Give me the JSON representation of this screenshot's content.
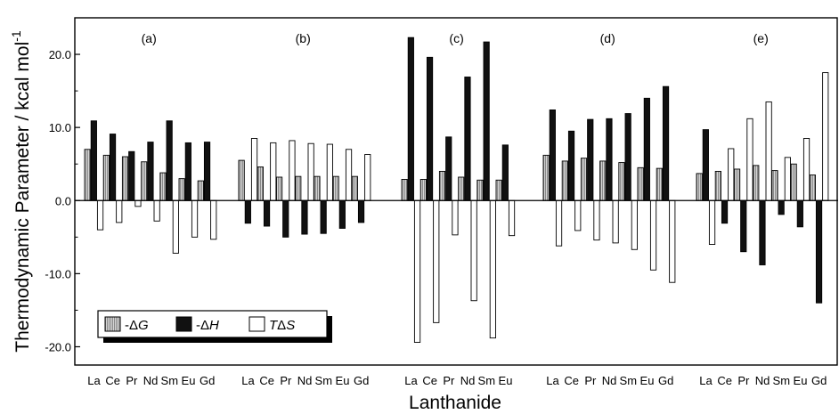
{
  "chart_data": {
    "type": "bar",
    "xlabel": "Lanthanide",
    "ylabel": "Thermodynamic Parameter / kcal mol",
    "ylabel_superscript": "-1",
    "ylim": [
      -22.5,
      25
    ],
    "yticks": [
      "-20.0",
      "-10.0",
      "0.0",
      "10.0",
      "20.0"
    ],
    "ytick_values": [
      -20,
      -10,
      0,
      10,
      20
    ],
    "legend": {
      "placement": "bottom-left",
      "entries": [
        {
          "key": "neg_dG",
          "prefix": "-",
          "delta": "Δ",
          "symbol": "G",
          "color": "#bdbdbd",
          "pattern": "vertical-hatch"
        },
        {
          "key": "neg_dH",
          "prefix": "-",
          "delta": "Δ",
          "symbol": "H",
          "color": "#111111",
          "pattern": "solid"
        },
        {
          "key": "TdS",
          "prefix": "T",
          "delta": "Δ",
          "symbol": "S",
          "color": "#ffffff",
          "pattern": "solid"
        }
      ]
    },
    "panels": [
      {
        "label": "(a)",
        "categories": [
          "La",
          "Ce",
          "Pr",
          "Nd",
          "Sm",
          "Eu",
          "Gd"
        ],
        "series": [
          {
            "key": "neg_dG",
            "values": [
              7.0,
              6.2,
              6.0,
              5.3,
              3.8,
              3.0,
              2.7
            ]
          },
          {
            "key": "neg_dH",
            "values": [
              10.9,
              9.1,
              6.7,
              8.0,
              10.9,
              7.9,
              8.0
            ]
          },
          {
            "key": "TdS",
            "values": [
              -4.0,
              -3.0,
              -0.8,
              -2.8,
              -7.2,
              -5.0,
              -5.3
            ]
          }
        ]
      },
      {
        "label": "(b)",
        "categories": [
          "La",
          "Ce",
          "Pr",
          "Nd",
          "Sm",
          "Eu",
          "Gd"
        ],
        "series": [
          {
            "key": "neg_dG",
            "values": [
              5.5,
              4.6,
              3.2,
              3.3,
              3.3,
              3.3,
              3.3
            ]
          },
          {
            "key": "neg_dH",
            "values": [
              -3.1,
              -3.5,
              -5.0,
              -4.6,
              -4.5,
              -3.8,
              -3.0
            ]
          },
          {
            "key": "TdS",
            "values": [
              8.5,
              7.9,
              8.2,
              7.8,
              7.7,
              7.0,
              6.3
            ]
          }
        ]
      },
      {
        "label": "(c)",
        "categories": [
          "La",
          "Ce",
          "Pr",
          "Nd",
          "Sm",
          "Eu"
        ],
        "series": [
          {
            "key": "neg_dG",
            "values": [
              2.9,
              2.9,
              4.0,
              3.2,
              2.8,
              2.8
            ]
          },
          {
            "key": "neg_dH",
            "values": [
              22.3,
              19.6,
              8.7,
              16.9,
              21.7,
              7.6
            ]
          },
          {
            "key": "TdS",
            "values": [
              -19.4,
              -16.7,
              -4.7,
              -13.7,
              -18.8,
              -4.8
            ]
          }
        ]
      },
      {
        "label": "(d)",
        "categories": [
          "La",
          "Ce",
          "Pr",
          "Nd",
          "Sm",
          "Eu",
          "Gd"
        ],
        "series": [
          {
            "key": "neg_dG",
            "values": [
              6.2,
              5.4,
              5.8,
              5.4,
              5.2,
              4.5,
              4.4
            ]
          },
          {
            "key": "neg_dH",
            "values": [
              12.4,
              9.5,
              11.1,
              11.2,
              11.9,
              14.0,
              15.6
            ]
          },
          {
            "key": "TdS",
            "values": [
              -6.2,
              -4.1,
              -5.4,
              -5.8,
              -6.7,
              -9.5,
              -11.2
            ]
          }
        ]
      },
      {
        "label": "(e)",
        "categories": [
          "La",
          "Ce",
          "Pr",
          "Nd",
          "Sm",
          "Eu",
          "Gd"
        ],
        "series": [
          {
            "key": "neg_dG",
            "values": [
              3.7,
              4.0,
              4.3,
              4.8,
              4.1,
              5.0,
              3.5
            ]
          },
          {
            "key": "neg_dH",
            "values": [
              9.7,
              -3.1,
              -7.0,
              -8.8,
              -1.9,
              -3.6,
              -14.0
            ]
          },
          {
            "key": "TdS",
            "values": [
              -6.0,
              7.1,
              11.2,
              13.5,
              5.9,
              8.5,
              17.5
            ]
          }
        ]
      }
    ],
    "colors": {
      "frame": "#000000",
      "dG": "#bdbdbd",
      "dH": "#111111",
      "TdS": "#ffffff"
    }
  }
}
